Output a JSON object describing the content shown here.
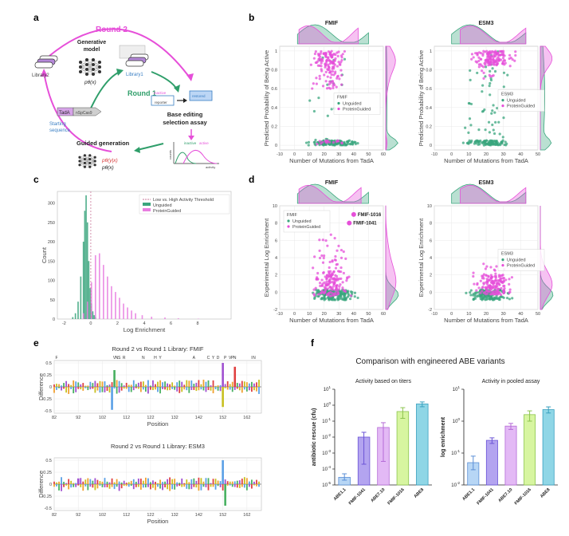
{
  "panels": {
    "a": "a",
    "b": "b",
    "c": "c",
    "d": "d",
    "e": "e",
    "f": "f"
  },
  "diagram_a": {
    "round2": "Round 2",
    "round1": "Round 1",
    "library2": "Library2",
    "library1": "Library1",
    "generative_model": [
      "Generative",
      "model"
    ],
    "p_theta_x": "pθ(x)",
    "starting_sequence": [
      "Starting",
      "sequence"
    ],
    "tada": "TadA",
    "dcas": "nSpCas9",
    "reporter_inactive": "inactive",
    "reporter_label": "reporter",
    "restored": "restored",
    "assay": [
      "Base editing",
      "selection assay"
    ],
    "guided_generation": "Guided generation",
    "p_theta_yx": "pθ(y|x)",
    "p_theta_x2": "pθ(x)",
    "density_labels": [
      "inactive",
      "active"
    ],
    "density_axes": [
      "counts",
      "activity"
    ]
  },
  "chart_data": [
    {
      "id": "b-fmif",
      "type": "scatter",
      "title": "FMIF",
      "xlabel": "Number of Mutations from TadA",
      "ylabel": "Predicted Probability of Being Active",
      "xlim": [
        -10,
        60
      ],
      "ylim": [
        -0.05,
        1.05
      ],
      "xticks": [
        -10,
        0,
        10,
        20,
        30,
        40,
        50,
        60
      ],
      "yticks": [
        0.0,
        0.2,
        0.4,
        0.6,
        0.8,
        1.0
      ],
      "legend": {
        "title": "FMIF",
        "entries": [
          "Unguided",
          "ProteinGuided"
        ],
        "position": "right"
      },
      "series": [
        {
          "name": "Unguided",
          "color": "#3aa57d",
          "x_range": [
            2,
            50
          ],
          "y_clusters": [
            [
              0.0,
              0.05,
              0.9
            ],
            [
              0.05,
              1.0,
              0.1
            ]
          ]
        },
        {
          "name": "ProteinGuided",
          "color": "#e64fd9",
          "x_range": [
            3,
            43
          ],
          "y_clusters": [
            [
              0.82,
              1.0,
              0.7
            ],
            [
              0.6,
              0.82,
              0.2
            ],
            [
              0.0,
              0.05,
              0.1
            ]
          ]
        }
      ]
    },
    {
      "id": "b-esm3",
      "type": "scatter",
      "title": "ESM3",
      "xlabel": "Number of Mutations from TadA",
      "ylabel": "Predicted Probability of Being Active",
      "xlim": [
        -10,
        50
      ],
      "ylim": [
        -0.05,
        1.05
      ],
      "xticks": [
        -10,
        0,
        10,
        20,
        30,
        40,
        50
      ],
      "yticks": [
        0.0,
        0.2,
        0.4,
        0.6,
        0.8,
        1.0
      ],
      "legend": {
        "title": "ESM3",
        "entries": [
          "Unguided",
          "ProteinGuided"
        ],
        "position": "top-right"
      },
      "series": [
        {
          "name": "Unguided",
          "color": "#3aa57d",
          "x_range": [
            0,
            43
          ],
          "y_clusters": [
            [
              0.0,
              0.05,
              0.65
            ],
            [
              0.05,
              1.0,
              0.35
            ]
          ]
        },
        {
          "name": "ProteinGuided",
          "color": "#e64fd9",
          "x_range": [
            5,
            43
          ],
          "y_clusters": [
            [
              0.85,
              1.0,
              0.9
            ],
            [
              0.7,
              0.85,
              0.1
            ]
          ]
        }
      ]
    },
    {
      "id": "c-hist",
      "type": "bar",
      "title": "",
      "xlabel": "Log Enrichment",
      "ylabel": "Count",
      "xlim": [
        -2.5,
        10.5
      ],
      "ylim": [
        0,
        330
      ],
      "xticks": [
        -2,
        0,
        2,
        4,
        6,
        8
      ],
      "yticks": [
        0,
        50,
        100,
        150,
        200,
        250,
        300
      ],
      "threshold": 0,
      "legend": {
        "entries": [
          "Low vs. High Activity Threshold",
          "Unguided",
          "ProteinGuided"
        ],
        "position": "top-right"
      },
      "series": [
        {
          "name": "Unguided",
          "color": "#3aa57d",
          "bins": [
            -1.4,
            -1.2,
            -1.0,
            -0.8,
            -0.6,
            -0.5,
            -0.4,
            -0.3,
            -0.2,
            -0.1,
            0.0,
            0.1,
            0.2,
            0.3
          ],
          "values": [
            5,
            15,
            45,
            110,
            200,
            280,
            320,
            250,
            150,
            80,
            40,
            20,
            10,
            5
          ]
        },
        {
          "name": "ProteinGuided",
          "color": "#e87ee0",
          "bins": [
            -0.6,
            -0.3,
            0.0,
            0.3,
            0.6,
            0.9,
            1.2,
            1.5,
            1.8,
            2.1,
            2.4,
            2.7,
            3.0,
            3.3,
            3.8,
            4.5,
            5.5,
            6.5,
            8.0
          ],
          "values": [
            15,
            45,
            95,
            165,
            170,
            140,
            110,
            85,
            70,
            55,
            40,
            30,
            22,
            15,
            10,
            6,
            4,
            2,
            1
          ]
        }
      ]
    },
    {
      "id": "d-fmif",
      "type": "scatter",
      "title": "FMIF",
      "xlabel": "Number of Mutations from TadA",
      "ylabel": "Experimental Log Enrichment",
      "xlim": [
        -10,
        60
      ],
      "ylim": [
        -2,
        10
      ],
      "xticks": [
        -10,
        0,
        10,
        20,
        30,
        40,
        50,
        60
      ],
      "yticks": [
        -2,
        0,
        2,
        4,
        6,
        8,
        10
      ],
      "legend": {
        "title": "FMIF",
        "entries": [
          "Unguided",
          "ProteinGuided"
        ],
        "position": "top-left"
      },
      "annotations": [
        {
          "label": "FMIF-1016",
          "x": 40,
          "y": 9.0
        },
        {
          "label": "FMIF-1041",
          "x": 37,
          "y": 8.0
        }
      ],
      "series": [
        {
          "name": "Unguided",
          "color": "#3aa57d",
          "x_range": [
            2,
            50
          ],
          "y_clusters": [
            [
              -0.9,
              0.3,
              1.0
            ]
          ]
        },
        {
          "name": "ProteinGuided",
          "color": "#e64fd9",
          "x_range": [
            3,
            45
          ],
          "y_clusters": [
            [
              -0.5,
              2.5,
              0.75
            ],
            [
              2.5,
              5.5,
              0.22
            ],
            [
              5.5,
              7.2,
              0.03
            ]
          ]
        }
      ]
    },
    {
      "id": "d-esm3",
      "type": "scatter",
      "title": "ESM3",
      "xlabel": "Number of Mutations from TadA",
      "ylabel": "Experimental Log Enrichment",
      "xlim": [
        -10,
        50
      ],
      "ylim": [
        -2,
        10
      ],
      "xticks": [
        -10,
        0,
        10,
        20,
        30,
        40,
        50
      ],
      "yticks": [
        -2,
        0,
        2,
        4,
        6,
        8,
        10
      ],
      "legend": {
        "title": "ESM3",
        "entries": [
          "Unguided",
          "ProteinGuided"
        ],
        "position": "top-right"
      },
      "series": [
        {
          "name": "Unguided",
          "color": "#3aa57d",
          "x_range": [
            0,
            43
          ],
          "y_clusters": [
            [
              -0.9,
              0.3,
              1.0
            ]
          ]
        },
        {
          "name": "ProteinGuided",
          "color": "#e64fd9",
          "x_range": [
            5,
            43
          ],
          "y_clusters": [
            [
              -0.3,
              2.0,
              0.92
            ],
            [
              2.0,
              3.6,
              0.08
            ]
          ]
        }
      ]
    },
    {
      "id": "e-fmif",
      "type": "bar",
      "title": "Round 2 vs Round 1 Library: FMIF",
      "xlabel": "Position",
      "ylabel": "Difference",
      "xlim": [
        82,
        168
      ],
      "ylim": [
        -0.55,
        0.55
      ],
      "xticks": [
        82,
        92,
        102,
        112,
        122,
        132,
        142,
        152,
        162
      ],
      "yticks": [
        -0.5,
        -0.25,
        0.0,
        0.25,
        0.5
      ],
      "top_letters": [
        "F",
        "V",
        "N",
        "S",
        "R",
        "N",
        "H",
        "Y",
        "A",
        "C",
        "Y",
        "D",
        "P",
        "V",
        "P",
        "N",
        "I",
        "N"
      ],
      "spikes": [
        {
          "pos": 106,
          "val": -0.48
        },
        {
          "pos": 107,
          "val": 0.35
        },
        {
          "pos": 152,
          "val": 0.5
        },
        {
          "pos": 157,
          "val": 0.42
        },
        {
          "pos": 152,
          "val": -0.42
        }
      ]
    },
    {
      "id": "e-esm3",
      "type": "bar",
      "title": "Round 2 vs Round 1 Library: ESM3",
      "xlabel": "Position",
      "ylabel": "Difference",
      "xlim": [
        82,
        168
      ],
      "ylim": [
        -0.55,
        0.55
      ],
      "xticks": [
        82,
        92,
        102,
        112,
        122,
        132,
        142,
        152,
        162
      ],
      "yticks": [
        -0.5,
        -0.25,
        0.0,
        0.25,
        0.5
      ],
      "spikes": [
        {
          "pos": 152,
          "val": 0.5
        },
        {
          "pos": 153,
          "val": -0.45
        },
        {
          "pos": 92,
          "val": 0.12
        }
      ]
    },
    {
      "id": "f-titers",
      "type": "bar",
      "title": "Activity based on titers",
      "ylabel": "antibiotic rescue (cfu)",
      "yscale": "log",
      "ylim_exp": [
        -5,
        1
      ],
      "categories": [
        "ABE1.1",
        "FMIF-1041",
        "ABE7.10",
        "FMIF-1016",
        "ABE8"
      ],
      "values": [
        3e-05,
        0.01,
        0.04,
        0.4,
        1.2
      ],
      "err_low": [
        2e-05,
        0.0002,
        0.0003,
        0.15,
        0.8
      ],
      "err_high": [
        5e-05,
        0.02,
        0.08,
        0.7,
        1.6
      ],
      "colors": [
        "#b7d6f5",
        "#b3a4f0",
        "#e3b9f5",
        "#d7f5a0",
        "#8fd6e6"
      ],
      "edges": [
        "#5b8fd6",
        "#6b54d6",
        "#b46ad6",
        "#8cc44e",
        "#3aa0bf"
      ]
    },
    {
      "id": "f-pooled",
      "type": "bar",
      "title": "Activity in pooled assay",
      "ylabel": "log enrichment",
      "yscale": "log",
      "ylim_exp": [
        -2,
        1
      ],
      "categories": [
        "ABE1.1",
        "FMIF-1041",
        "ABE7.10",
        "FMIF-1016",
        "ABE8"
      ],
      "values": [
        0.05,
        0.25,
        0.7,
        1.6,
        2.3
      ],
      "err_low": [
        0.03,
        0.2,
        0.55,
        1.0,
        1.8
      ],
      "err_high": [
        0.08,
        0.3,
        0.85,
        2.1,
        2.8
      ],
      "colors": [
        "#b7d6f5",
        "#b3a4f0",
        "#e3b9f5",
        "#d7f5a0",
        "#8fd6e6"
      ],
      "edges": [
        "#5b8fd6",
        "#6b54d6",
        "#b46ad6",
        "#8cc44e",
        "#3aa0bf"
      ]
    }
  ],
  "panel_f_title": "Comparison with engineered ABE variants"
}
